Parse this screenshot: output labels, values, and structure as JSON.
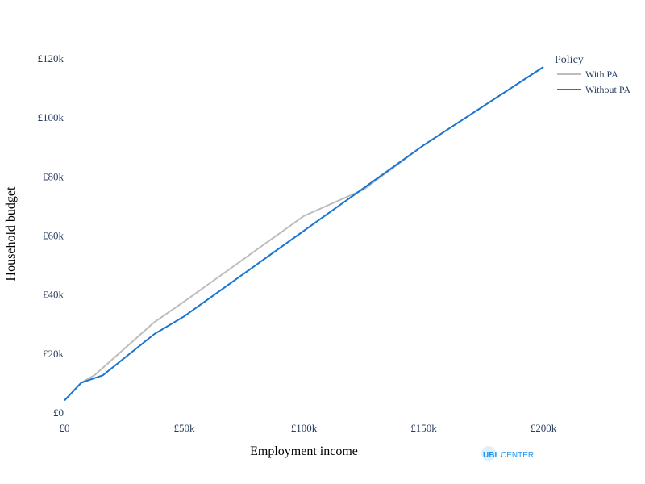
{
  "chart_data": {
    "type": "line",
    "title": "",
    "xlabel": "Employment income",
    "ylabel": "Household budget",
    "xlim": [
      0,
      200000
    ],
    "ylim": [
      0,
      120000
    ],
    "x_ticks": [
      {
        "value": 0,
        "label": "£0"
      },
      {
        "value": 50000,
        "label": "£50k"
      },
      {
        "value": 100000,
        "label": "£100k"
      },
      {
        "value": 150000,
        "label": "£150k"
      },
      {
        "value": 200000,
        "label": "£200k"
      }
    ],
    "y_ticks": [
      {
        "value": 0,
        "label": "£0"
      },
      {
        "value": 20000,
        "label": "£20k"
      },
      {
        "value": 40000,
        "label": "£40k"
      },
      {
        "value": 60000,
        "label": "£60k"
      },
      {
        "value": 80000,
        "label": "£80k"
      },
      {
        "value": 100000,
        "label": "£100k"
      },
      {
        "value": 120000,
        "label": "£120k"
      }
    ],
    "grid": false,
    "legend": {
      "title": "Policy",
      "placement": "top-right"
    },
    "series": [
      {
        "name": "With PA",
        "color": "#bdbdbd",
        "points": [
          [
            0,
            4000
          ],
          [
            7000,
            10000
          ],
          [
            12500,
            12500
          ],
          [
            37500,
            30500
          ],
          [
            50000,
            37500
          ],
          [
            100000,
            66500
          ],
          [
            125000,
            75500
          ],
          [
            150000,
            90500
          ],
          [
            200000,
            117000
          ]
        ]
      },
      {
        "name": "Without PA",
        "color": "#1976d2",
        "points": [
          [
            0,
            4000
          ],
          [
            7000,
            10000
          ],
          [
            16000,
            12500
          ],
          [
            37500,
            26500
          ],
          [
            50000,
            32500
          ],
          [
            100000,
            61500
          ],
          [
            125000,
            76000
          ],
          [
            150000,
            90500
          ],
          [
            200000,
            117000
          ]
        ]
      }
    ]
  },
  "logo": {
    "part1": "UBI",
    "part2": "CENTER",
    "color": "#2196f3"
  }
}
